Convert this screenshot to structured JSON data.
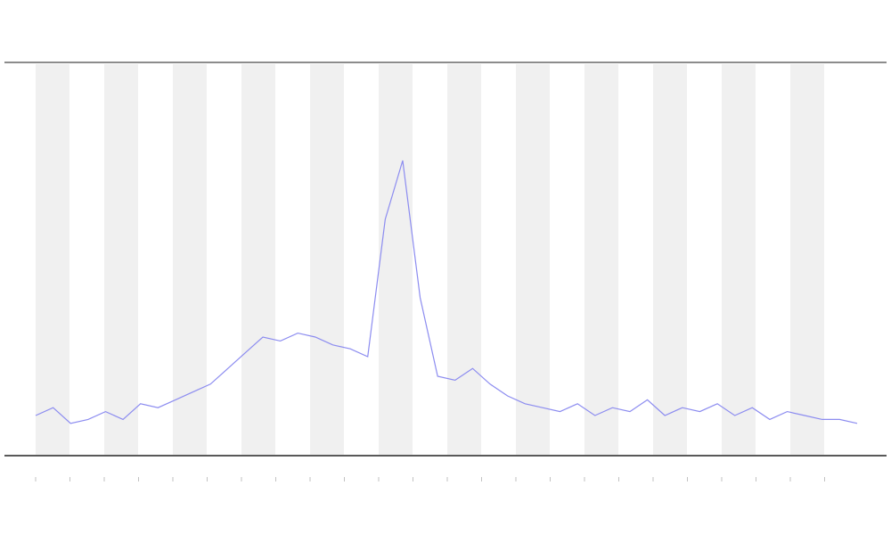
{
  "chart_data": {
    "type": "line",
    "x": [
      0,
      1,
      2,
      3,
      4,
      5,
      6,
      7,
      8,
      9,
      10,
      11,
      12,
      13,
      14,
      15,
      16,
      17,
      18,
      19,
      20,
      21,
      22,
      23,
      24,
      25,
      26,
      27,
      28,
      29,
      30,
      31,
      32,
      33,
      34,
      35,
      36,
      37,
      38,
      39,
      40,
      41,
      42,
      43,
      44,
      45,
      46,
      47
    ],
    "series": [
      {
        "color": "#8c8cf0",
        "values": [
          10,
          12,
          8,
          9,
          11,
          9,
          13,
          12,
          14,
          16,
          18,
          22,
          26,
          30,
          29,
          31,
          30,
          28,
          27,
          25,
          60,
          75,
          40,
          20,
          19,
          22,
          18,
          15,
          13,
          12,
          11,
          13,
          10,
          12,
          11,
          14,
          10,
          12,
          11,
          13,
          10,
          12,
          9,
          11,
          10,
          9,
          9,
          8
        ]
      }
    ],
    "xlim": [
      0,
      47
    ],
    "ylim": [
      0,
      100
    ]
  }
}
